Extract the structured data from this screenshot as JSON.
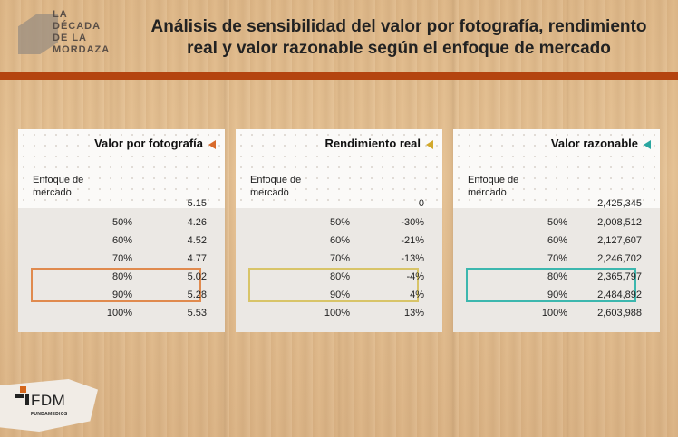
{
  "brand": {
    "logo_text": "LA\nDÉCADA\nDE LA\nMORDAZA",
    "footer_logo": "FDM",
    "footer_sub": "FUNDAMEDIOS"
  },
  "title": "Análisis de sensibilidad del valor por fotografía, rendimiento\nreal y valor razonable según el enfoque de mercado",
  "accent_bar_color": "#b4440f",
  "panels": [
    {
      "title": "Valor por fotografía",
      "arrow_color": "#d86a2a",
      "sublabel": "Enfoque de\nmercado",
      "base_value": "5.15",
      "rows": [
        {
          "pct": "50%",
          "value": "4.26"
        },
        {
          "pct": "60%",
          "value": "4.52"
        },
        {
          "pct": "70%",
          "value": "4.77"
        },
        {
          "pct": "80%",
          "value": "5.02"
        },
        {
          "pct": "90%",
          "value": "5.28"
        },
        {
          "pct": "100%",
          "value": "5.53"
        }
      ],
      "highlight_color": "#e08a4e"
    },
    {
      "title": "Rendimiento real",
      "arrow_color": "#d2a92c",
      "sublabel": "Enfoque de\nmercado",
      "base_value": "0",
      "rows": [
        {
          "pct": "50%",
          "value": "-30%"
        },
        {
          "pct": "60%",
          "value": "-21%"
        },
        {
          "pct": "70%",
          "value": "-13%"
        },
        {
          "pct": "80%",
          "value": "-4%"
        },
        {
          "pct": "90%",
          "value": "4%"
        },
        {
          "pct": "100%",
          "value": "13%"
        }
      ],
      "highlight_color": "#d8c468"
    },
    {
      "title": "Valor razonable",
      "arrow_color": "#2aa6a0",
      "sublabel": "Enfoque de\nmercado",
      "base_value": "2,425,345",
      "rows": [
        {
          "pct": "50%",
          "value": "2,008,512"
        },
        {
          "pct": "60%",
          "value": "2,127,607"
        },
        {
          "pct": "70%",
          "value": "2,246,702"
        },
        {
          "pct": "80%",
          "value": "2,365,797"
        },
        {
          "pct": "90%",
          "value": "2,484,892"
        },
        {
          "pct": "100%",
          "value": "2,603,988"
        }
      ],
      "highlight_color": "#3cb7ae"
    }
  ]
}
